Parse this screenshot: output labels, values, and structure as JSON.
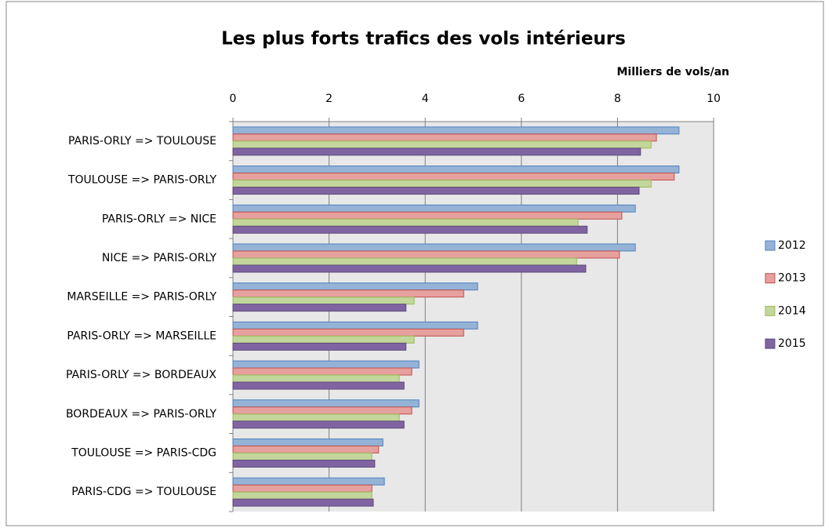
{
  "chart_data": {
    "type": "bar",
    "horizontal": true,
    "title": "Les plus forts trafics des vols intérieurs",
    "x_label": "Milliers  de vols/an",
    "categories": [
      "PARIS-ORLY => TOULOUSE",
      "TOULOUSE => PARIS-ORLY",
      "PARIS-ORLY => NICE",
      "NICE => PARIS-ORLY",
      "MARSEILLE => PARIS-ORLY",
      "PARIS-ORLY => MARSEILLE",
      "PARIS-ORLY => BORDEAUX",
      "BORDEAUX => PARIS-ORLY",
      "TOULOUSE => PARIS-CDG",
      "PARIS-CDG => TOULOUSE"
    ],
    "series": [
      {
        "name": "2012",
        "color": "#95b3d7",
        "edge": "#4f81bd",
        "values": [
          9.28,
          9.28,
          8.37,
          8.37,
          5.09,
          5.09,
          3.87,
          3.87,
          3.12,
          3.15
        ]
      },
      {
        "name": "2013",
        "color": "#e6a09e",
        "edge": "#c0504d",
        "values": [
          8.81,
          9.18,
          8.09,
          8.04,
          4.8,
          4.8,
          3.72,
          3.72,
          3.03,
          2.89
        ]
      },
      {
        "name": "2014",
        "color": "#c3d69b",
        "edge": "#9bbb59",
        "values": [
          8.7,
          8.7,
          7.18,
          7.15,
          3.77,
          3.77,
          3.46,
          3.46,
          2.89,
          2.89
        ]
      },
      {
        "name": "2015",
        "color": "#8064a2",
        "edge": "#5f4a7a",
        "values": [
          8.48,
          8.45,
          7.37,
          7.34,
          3.6,
          3.6,
          3.56,
          3.56,
          2.95,
          2.92
        ]
      }
    ],
    "xlim": [
      0,
      10
    ],
    "xticks": [
      0,
      2,
      4,
      6,
      8,
      10
    ],
    "grid": true,
    "legend": "right"
  }
}
